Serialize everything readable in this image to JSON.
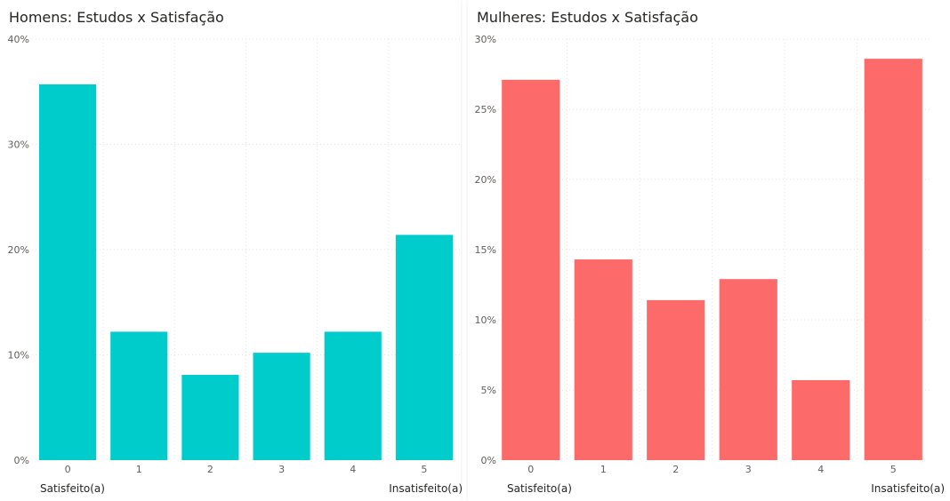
{
  "chart_data": [
    {
      "type": "bar",
      "title": "Homens: Estudos x Satisfação",
      "categories": [
        "0",
        "1",
        "2",
        "3",
        "4",
        "5"
      ],
      "values": [
        35.7,
        12.2,
        8.1,
        10.2,
        12.2,
        21.4
      ],
      "ylim": [
        0,
        40
      ],
      "yticks": [
        0,
        10,
        20,
        30,
        40
      ],
      "ytick_labels": [
        "0%",
        "10%",
        "20%",
        "30%",
        "40%"
      ],
      "color": "#00cccc",
      "grid": true,
      "x_left_label": "Satisfeito(a)",
      "x_right_label": "Insatisfeito(a)"
    },
    {
      "type": "bar",
      "title": "Mulheres: Estudos x Satisfação",
      "categories": [
        "0",
        "1",
        "2",
        "3",
        "4",
        "5"
      ],
      "values": [
        27.1,
        14.3,
        11.4,
        12.9,
        5.7,
        28.6
      ],
      "ylim": [
        0,
        30
      ],
      "yticks": [
        0,
        5,
        10,
        15,
        20,
        25,
        30
      ],
      "ytick_labels": [
        "0%",
        "5%",
        "10%",
        "15%",
        "20%",
        "25%",
        "30%"
      ],
      "color": "#fd6a6a",
      "grid": true,
      "x_left_label": "Satisfeito(a)",
      "x_right_label": "Insatisfeito(a)"
    }
  ]
}
